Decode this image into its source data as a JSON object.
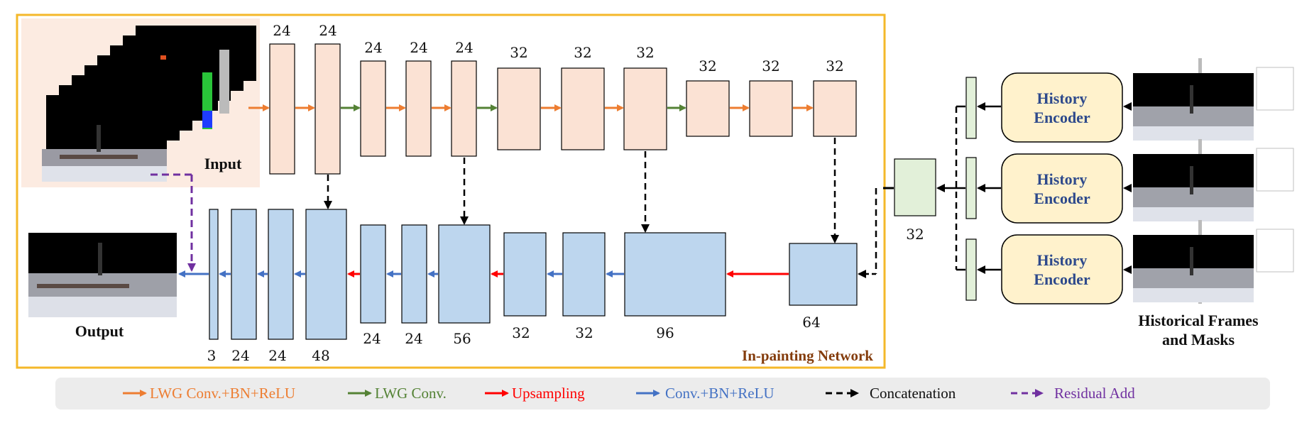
{
  "input_label": "Input",
  "output_label": "Output",
  "network_label": "In-painting Network",
  "historical_label_line1": "Historical Frames",
  "historical_label_line2": "and Masks",
  "history_encoder_line1": "History",
  "history_encoder_line2": "Encoder",
  "encoder_channels": [
    "24",
    "24",
    "24",
    "24",
    "24",
    "32",
    "32",
    "32",
    "32",
    "32",
    "32"
  ],
  "decoder_channels": [
    "3",
    "24",
    "24",
    "48",
    "24",
    "24",
    "56",
    "32",
    "32",
    "96",
    "64"
  ],
  "history_channel": "32",
  "legend": {
    "lwg_conv_bn_relu": "LWG Conv.+BN+ReLU",
    "lwg_conv": "LWG Conv.",
    "upsampling": "Upsampling",
    "conv_bn_relu": "Conv.+BN+ReLU",
    "concatenation": "Concatenation",
    "residual_add": "Residual Add"
  },
  "colors": {
    "encoder_block": "#fbe2d4",
    "decoder_block": "#bdd6ee",
    "history_block": "#e2f0d9",
    "encoder_box": "#fff2cc",
    "network_border": "#f4b82a",
    "orange_arrow": "#ed7d31",
    "green_arrow": "#548235",
    "red_arrow": "#ff0000",
    "blue_arrow": "#4472c4",
    "purple_arrow": "#7030a0"
  }
}
